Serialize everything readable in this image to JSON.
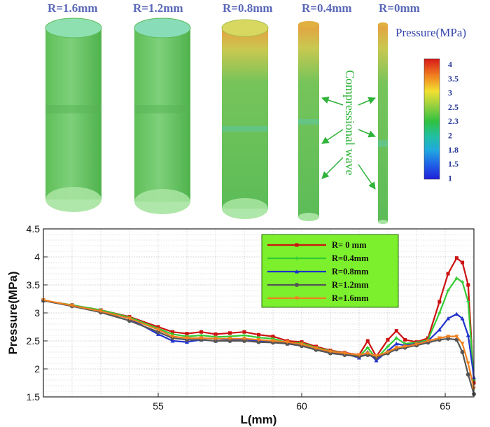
{
  "figure": {
    "cylinder_labels": [
      "R=1.6mm",
      "R=1.2mm",
      "R=0.8mm",
      "R=0.4mm",
      "R=0mm"
    ],
    "colorbar": {
      "title": "Pressure(MPa)",
      "ticks": [
        "4",
        "3.5",
        "3",
        "2.5",
        "2.3",
        "2",
        "1.8",
        "1.5",
        "1"
      ],
      "colors": [
        "#d81818",
        "#f08020",
        "#f2e030",
        "#8fd040",
        "#30c040",
        "#22c0a0",
        "#20a8e0",
        "#2060e8",
        "#2020d8"
      ]
    },
    "wave_label": "Compressional wave"
  },
  "chart_data": {
    "type": "line",
    "xlabel": "L(mm)",
    "ylabel": "Pressure(MPa)",
    "xlim": [
      51,
      66
    ],
    "ylim": [
      1.5,
      4.5
    ],
    "xticks": [
      55,
      60,
      65
    ],
    "yticks": [
      1.5,
      2,
      2.5,
      3,
      3.5,
      4,
      4.5
    ],
    "grid": true,
    "legend_position": "top-center",
    "legend_bg": "#7cf02c",
    "series": [
      {
        "name": "R= 0 mm",
        "color": "#cc1111",
        "marker": "square",
        "x": [
          51,
          52,
          53,
          54,
          55,
          55.5,
          56,
          56.5,
          57,
          57.5,
          58,
          58.5,
          59,
          59.5,
          60,
          60.5,
          61,
          61.5,
          62,
          62.3,
          62.6,
          63,
          63.3,
          63.6,
          64,
          64.4,
          64.8,
          65.1,
          65.4,
          65.6,
          65.8,
          66
        ],
        "y": [
          3.22,
          3.14,
          3.05,
          2.93,
          2.75,
          2.66,
          2.63,
          2.66,
          2.62,
          2.64,
          2.66,
          2.61,
          2.58,
          2.5,
          2.48,
          2.4,
          2.33,
          2.29,
          2.25,
          2.5,
          2.22,
          2.52,
          2.68,
          2.52,
          2.48,
          2.55,
          3.2,
          3.7,
          3.98,
          3.9,
          3.5,
          1.75
        ]
      },
      {
        "name": "R=0.4mm",
        "color": "#33cc33",
        "marker": "plus",
        "x": [
          51,
          52,
          53,
          54,
          55,
          55.5,
          56,
          56.5,
          57,
          57.5,
          58,
          58.5,
          59,
          59.5,
          60,
          60.5,
          61,
          61.5,
          62,
          62.3,
          62.6,
          63,
          63.3,
          63.6,
          64,
          64.4,
          64.8,
          65.1,
          65.4,
          65.6,
          65.8,
          66
        ],
        "y": [
          3.22,
          3.14,
          3.05,
          2.92,
          2.72,
          2.62,
          2.58,
          2.6,
          2.57,
          2.58,
          2.6,
          2.56,
          2.54,
          2.47,
          2.46,
          2.38,
          2.32,
          2.28,
          2.22,
          2.38,
          2.18,
          2.4,
          2.55,
          2.45,
          2.47,
          2.52,
          3.0,
          3.4,
          3.62,
          3.55,
          3.2,
          1.8
        ]
      },
      {
        "name": "R=0.8mm",
        "color": "#2233cc",
        "marker": "triangle",
        "x": [
          51,
          52,
          53,
          54,
          55,
          55.5,
          56,
          56.5,
          57,
          57.5,
          58,
          58.5,
          59,
          59.5,
          60,
          60.5,
          61,
          61.5,
          62,
          62.3,
          62.6,
          63,
          63.3,
          63.6,
          64,
          64.4,
          64.8,
          65.1,
          65.4,
          65.6,
          65.8,
          66
        ],
        "y": [
          3.22,
          3.13,
          3.03,
          2.9,
          2.62,
          2.5,
          2.48,
          2.52,
          2.5,
          2.52,
          2.53,
          2.5,
          2.49,
          2.45,
          2.43,
          2.36,
          2.3,
          2.27,
          2.2,
          2.3,
          2.15,
          2.32,
          2.45,
          2.42,
          2.45,
          2.5,
          2.7,
          2.9,
          2.98,
          2.9,
          2.6,
          1.85
        ]
      },
      {
        "name": "R=1.2mm",
        "color": "#555555",
        "marker": "circle",
        "x": [
          51,
          52,
          53,
          54,
          55,
          55.5,
          56,
          56.5,
          57,
          57.5,
          58,
          58.5,
          59,
          59.5,
          60,
          60.5,
          61,
          61.5,
          62,
          62.3,
          62.6,
          63,
          63.3,
          63.6,
          64,
          64.4,
          64.8,
          65.1,
          65.4,
          65.6,
          65.8,
          66
        ],
        "y": [
          3.22,
          3.12,
          3.01,
          2.86,
          2.66,
          2.55,
          2.52,
          2.52,
          2.5,
          2.5,
          2.5,
          2.48,
          2.47,
          2.45,
          2.41,
          2.34,
          2.28,
          2.25,
          2.22,
          2.25,
          2.2,
          2.28,
          2.35,
          2.38,
          2.42,
          2.47,
          2.52,
          2.54,
          2.52,
          2.3,
          1.9,
          1.55
        ]
      },
      {
        "name": "R=1.6mm",
        "color": "#f08020",
        "marker": "down-triangle",
        "x": [
          51,
          52,
          53,
          54,
          55,
          55.5,
          56,
          56.5,
          57,
          57.5,
          58,
          58.5,
          59,
          59.5,
          60,
          60.5,
          61,
          61.5,
          62,
          62.3,
          62.6,
          63,
          63.3,
          63.6,
          64,
          64.4,
          64.8,
          65.1,
          65.4,
          65.6,
          65.8,
          66
        ],
        "y": [
          3.23,
          3.13,
          3.03,
          2.9,
          2.7,
          2.58,
          2.55,
          2.55,
          2.54,
          2.54,
          2.54,
          2.52,
          2.5,
          2.48,
          2.44,
          2.37,
          2.31,
          2.28,
          2.25,
          2.28,
          2.23,
          2.3,
          2.38,
          2.4,
          2.44,
          2.5,
          2.55,
          2.58,
          2.58,
          2.45,
          2.1,
          1.65
        ]
      }
    ]
  }
}
